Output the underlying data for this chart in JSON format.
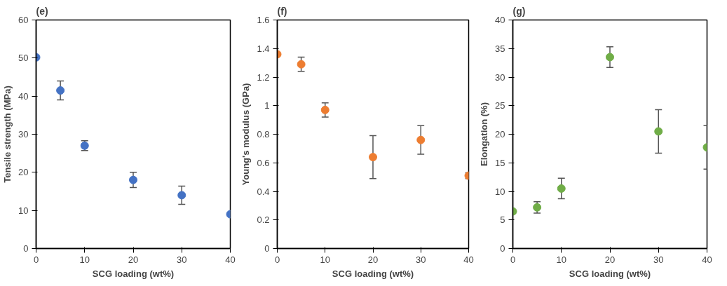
{
  "chart_data": [
    {
      "type": "scatter",
      "title": "(e)",
      "xlabel": "SCG loading (wt%)",
      "ylabel": "Tensile strength (MPa)",
      "x": [
        0,
        5,
        10,
        20,
        30,
        40
      ],
      "xlim": [
        0,
        40
      ],
      "xticks": [
        0,
        10,
        20,
        30,
        40
      ],
      "ylim": [
        0,
        60
      ],
      "yticks": [
        0,
        10,
        20,
        30,
        40,
        50,
        60
      ],
      "marker": "circle",
      "grid": false,
      "series": [
        {
          "color": "#4472c4",
          "values": [
            50.2,
            41.5,
            27,
            18,
            14,
            9
          ],
          "errors": [
            null,
            2.5,
            1.3,
            2,
            2.4,
            null
          ]
        }
      ]
    },
    {
      "type": "scatter",
      "title": "(f)",
      "xlabel": "SCG loading (wt%)",
      "ylabel": "Young's modulus (GPa)",
      "x": [
        0,
        5,
        10,
        20,
        30,
        40
      ],
      "xlim": [
        0,
        40
      ],
      "xticks": [
        0,
        10,
        20,
        30,
        40
      ],
      "ylim": [
        0,
        1.6
      ],
      "yticks": [
        0,
        0.2,
        0.4,
        0.6,
        0.8,
        1,
        1.2,
        1.4,
        1.6
      ],
      "marker": "circle",
      "grid": false,
      "series": [
        {
          "color": "#ed7d31",
          "values": [
            1.36,
            1.29,
            0.97,
            0.64,
            0.76,
            0.51
          ],
          "errors": [
            null,
            0.05,
            0.05,
            0.15,
            0.1,
            0.02
          ]
        }
      ]
    },
    {
      "type": "scatter",
      "title": "(g)",
      "xlabel": "SCG loading (wt%)",
      "ylabel": "Elongation (%)",
      "x": [
        0,
        5,
        10,
        20,
        30,
        40
      ],
      "xlim": [
        0,
        40
      ],
      "xticks": [
        0,
        10,
        20,
        30,
        40
      ],
      "ylim": [
        0,
        40
      ],
      "yticks": [
        0,
        5,
        10,
        15,
        20,
        25,
        30,
        35,
        40
      ],
      "marker": "circle",
      "grid": false,
      "series": [
        {
          "color": "#70ad47",
          "values": [
            6.5,
            7.2,
            10.5,
            33.5,
            20.5,
            17.7
          ],
          "errors": [
            null,
            1,
            1.8,
            1.8,
            3.8,
            3.8
          ]
        }
      ]
    }
  ]
}
